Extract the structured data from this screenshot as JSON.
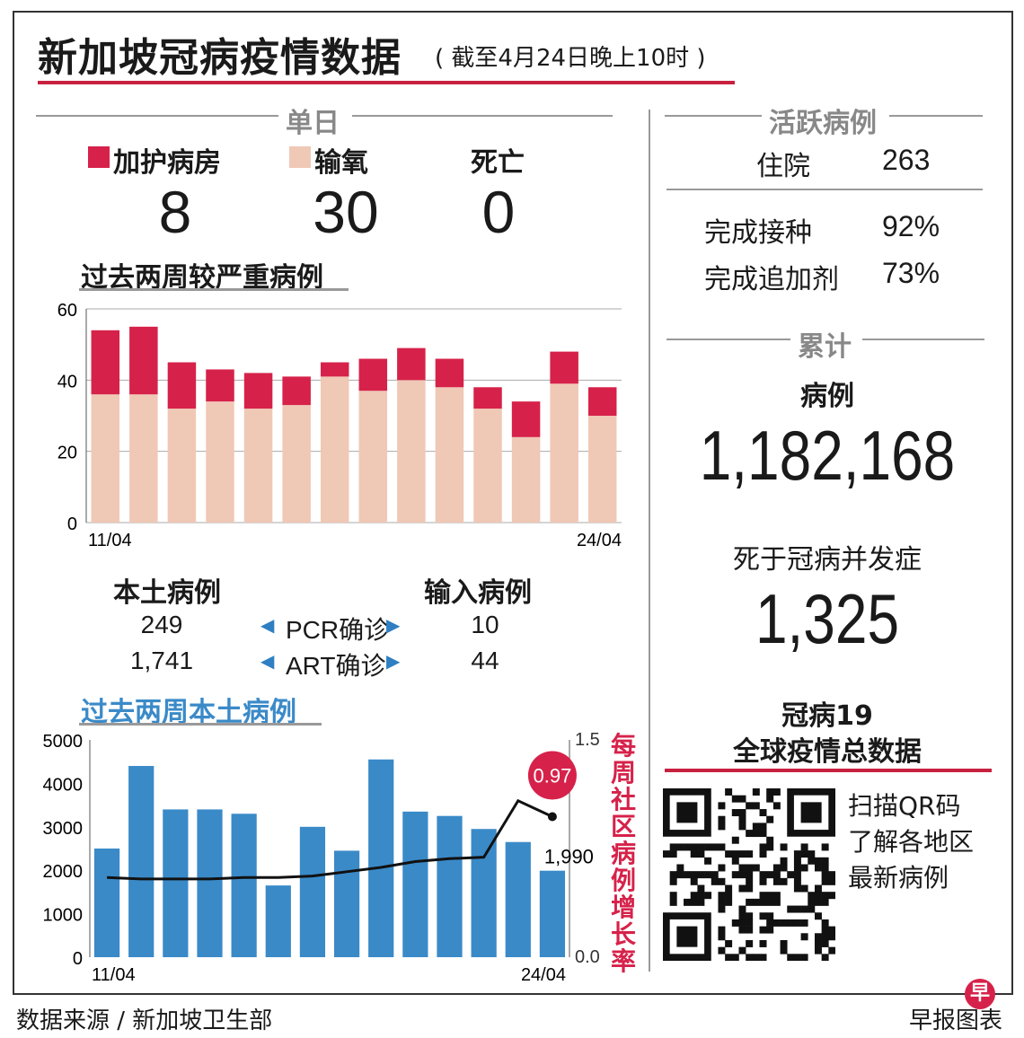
{
  "header": {
    "title": "新加坡冠病疫情数据",
    "subtitle": "( 截至4月24日晚上10时 )"
  },
  "daily": {
    "section_label": "单日",
    "icu_label": "加护病房",
    "oxygen_label": "输氧",
    "deaths_label": "死亡",
    "icu": "8",
    "oxygen": "30",
    "deaths": "0",
    "colors": {
      "icu": "#d6224a",
      "oxygen": "#f0c8b6"
    }
  },
  "severe_chart": {
    "heading": "过去两周较严重病例",
    "chart_data": {
      "type": "bar",
      "stacked": true,
      "categories": [
        "11/04",
        "12/04",
        "13/04",
        "14/04",
        "15/04",
        "16/04",
        "17/04",
        "18/04",
        "19/04",
        "20/04",
        "21/04",
        "22/04",
        "23/04",
        "24/04"
      ],
      "x_tick_labels": [
        "11/04",
        "24/04"
      ],
      "series": [
        {
          "name": "输氧",
          "values": [
            36,
            36,
            32,
            34,
            32,
            33,
            41,
            37,
            40,
            38,
            32,
            24,
            39,
            30
          ],
          "color": "#f0c8b6"
        },
        {
          "name": "加护病房",
          "values": [
            18,
            19,
            13,
            9,
            10,
            8,
            4,
            9,
            9,
            8,
            6,
            10,
            9,
            8
          ],
          "color": "#d6224a"
        }
      ],
      "ylim": [
        0,
        60
      ],
      "yticks": [
        "0",
        "20",
        "40",
        "60"
      ],
      "grid": true
    }
  },
  "local_imported": {
    "local_label": "本土病例",
    "imported_label": "输入病例",
    "rows": [
      {
        "local": "249",
        "method": "PCR确诊",
        "imported": "10"
      },
      {
        "local": "1,741",
        "method": "ART确诊",
        "imported": "44"
      }
    ]
  },
  "local_chart": {
    "heading": "过去两周本土病例",
    "right_axis_label": "每周社区病例增长率",
    "chart_data": {
      "type": "bar",
      "categories": [
        "11/04",
        "12/04",
        "13/04",
        "14/04",
        "15/04",
        "16/04",
        "17/04",
        "18/04",
        "19/04",
        "20/04",
        "21/04",
        "22/04",
        "23/04",
        "24/04"
      ],
      "x_tick_labels": [
        "11/04",
        "24/04"
      ],
      "values": [
        2500,
        4400,
        3400,
        3400,
        3300,
        1650,
        3000,
        2450,
        4550,
        3350,
        3250,
        2950,
        2650,
        1990
      ],
      "ylim": [
        0,
        5000
      ],
      "yticks": [
        "0",
        "1000",
        "2000",
        "3000",
        "4000",
        "5000"
      ],
      "last_bar_label": "1,990",
      "bar_color": "#3a8ac8",
      "line": {
        "name": "每周社区病例增长率",
        "values": [
          0.55,
          0.54,
          0.54,
          0.54,
          0.55,
          0.55,
          0.56,
          0.59,
          0.62,
          0.66,
          0.68,
          0.69,
          1.08,
          0.97
        ],
        "ylim": [
          0.0,
          1.5
        ],
        "yticks": [
          "0.0",
          "1.5"
        ],
        "last_label": "0.97",
        "badge_color": "#d6224a"
      }
    }
  },
  "active": {
    "section_label": "活跃病例",
    "hospital_label": "住院",
    "hospital_value": "263",
    "vacc_label": "完成接种",
    "vacc_value": "92%",
    "booster_label": "完成追加剂",
    "booster_value": "73%"
  },
  "cumulative": {
    "section_label": "累计",
    "cases_label": "病例",
    "cases_value": "1,182,168",
    "deaths_label": "死于冠病并发症",
    "deaths_value": "1,325"
  },
  "global": {
    "line1": "冠病19",
    "line2": "全球疫情总数据",
    "qr_line1": "扫描QR码",
    "qr_line2": "了解各地区",
    "qr_line3": "最新病例"
  },
  "footer": {
    "source": "数据来源 / 新加坡卫生部",
    "credit": "早报图表",
    "logo_char": "早",
    "logo_color": "#d6224a"
  },
  "accent_color": "#c8213f"
}
